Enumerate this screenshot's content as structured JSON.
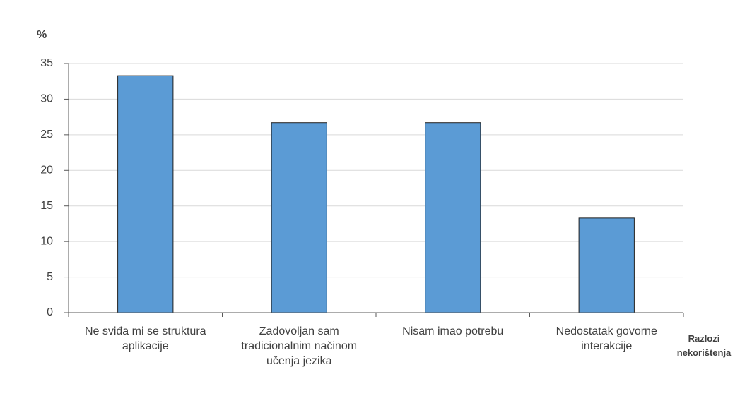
{
  "chart_data": {
    "type": "bar",
    "y_axis_label": "%",
    "x_axis_label": "Razlozi nekorištenja",
    "categories": [
      "Ne sviđa mi se struktura aplikacije",
      "Zadovoljan sam tradicionalnim načinom učenja jezika",
      "Nisam imao potrebu",
      "Nedostatak govorne interakcije"
    ],
    "values": [
      33.3,
      26.7,
      26.7,
      13.3
    ],
    "color": "#5b9bd5",
    "ylim": [
      0,
      35
    ],
    "yticks": [
      0,
      5,
      10,
      15,
      20,
      25,
      30,
      35
    ],
    "grid": true
  }
}
